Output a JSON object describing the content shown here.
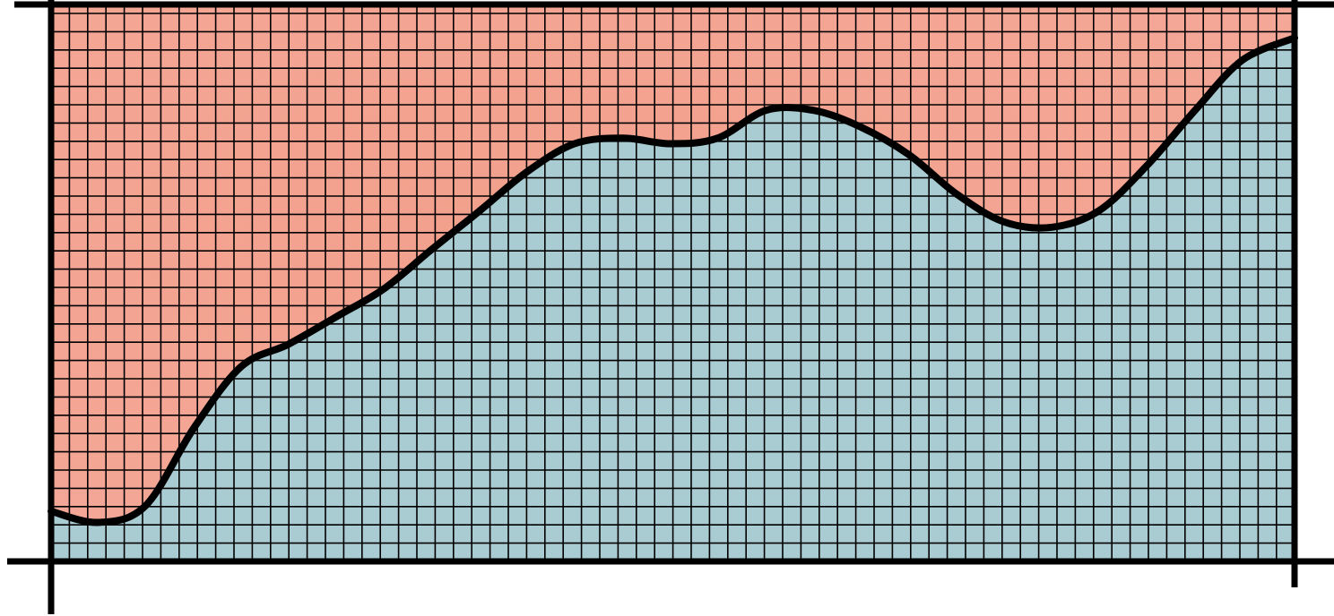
{
  "chart_data": {
    "type": "area",
    "title": "",
    "xlabel": "",
    "ylabel": "",
    "xlim": [
      0,
      100
    ],
    "ylim": [
      0,
      100
    ],
    "grid": true,
    "legend": "none",
    "colors": {
      "area_below": "#a9ccd3",
      "area_above": "#f2a08c",
      "area_above_edge": "#f5a898",
      "line": "#000000",
      "grid": "#000000"
    },
    "x": [
      0,
      3.8,
      7.6,
      11.5,
      15.3,
      19.1,
      23.0,
      26.8,
      30.6,
      34.5,
      38.3,
      42.1,
      46.0,
      49.8,
      53.6,
      57.5,
      61.3,
      65.1,
      69.0,
      72.8,
      76.6,
      80.5,
      84.3,
      88.1,
      92.0,
      95.8,
      100
    ],
    "series": [
      {
        "values": [
          9,
          7,
          10,
          24,
          35,
          39,
          44,
          49,
          56,
          63,
          70,
          75,
          76,
          75,
          76,
          81,
          81,
          78,
          73,
          66,
          61,
          60,
          63,
          71,
          81,
          90,
          94
        ]
      }
    ]
  }
}
